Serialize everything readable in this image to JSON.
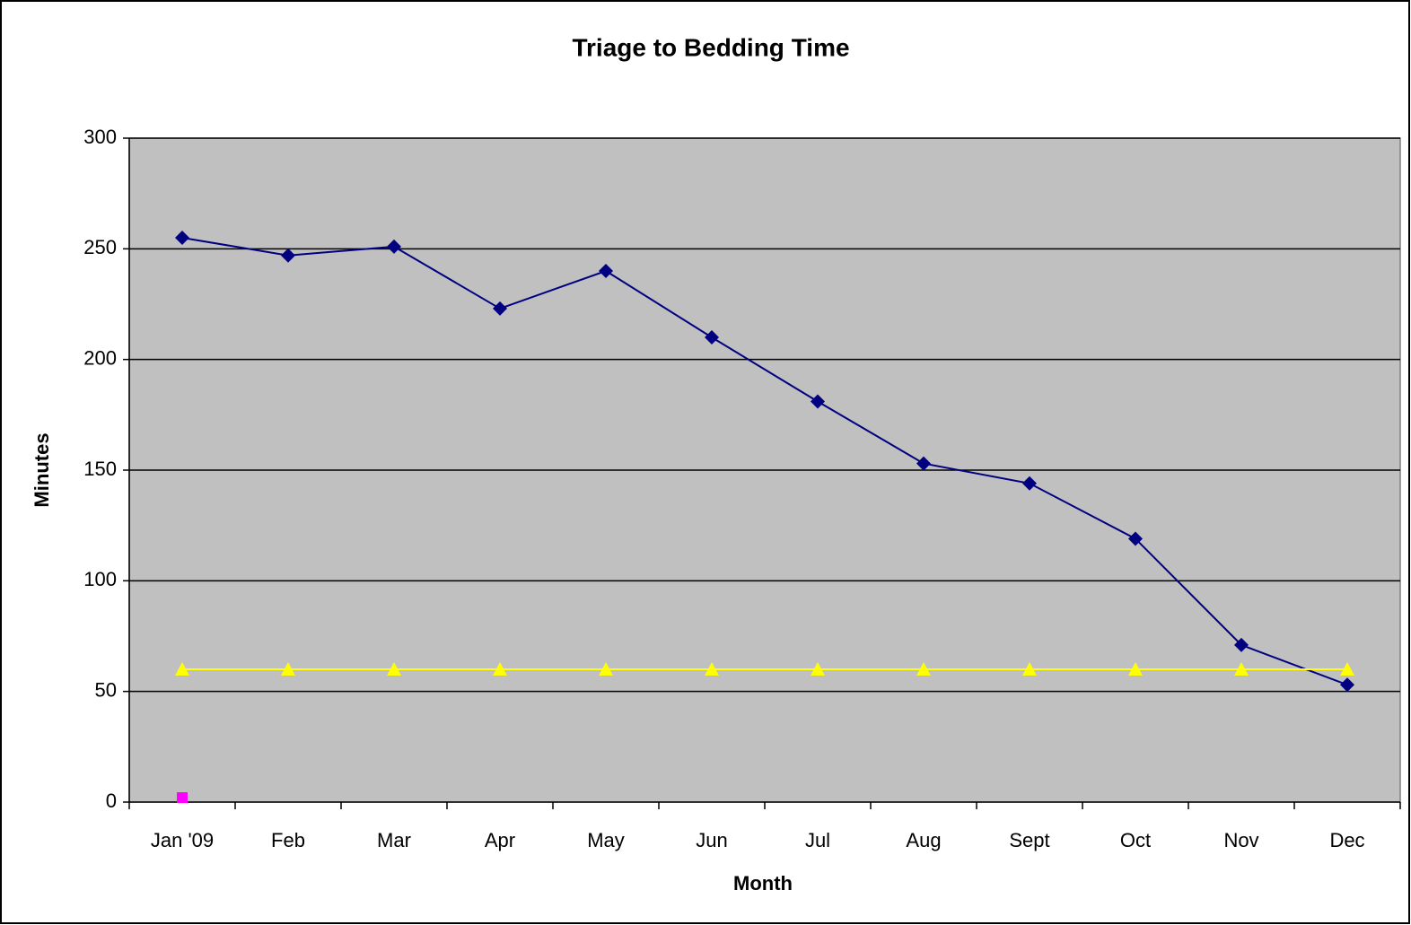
{
  "chart_data": {
    "type": "line",
    "title": "Triage to Bedding Time",
    "x_label": "Month",
    "y_label": "Minutes",
    "categories": [
      "Jan '09",
      "Feb",
      "Mar",
      "Apr",
      "May",
      "Jun",
      "Jul",
      "Aug",
      "Sept",
      "Oct",
      "Nov",
      "Dec"
    ],
    "series": [
      {
        "color": "#000080",
        "marker": "diamond",
        "values": [
          255,
          247,
          251,
          223,
          240,
          210,
          181,
          153,
          144,
          119,
          71,
          53
        ]
      },
      {
        "color": "#ffff00",
        "marker": "triangle",
        "values": [
          60,
          60,
          60,
          60,
          60,
          60,
          60,
          60,
          60,
          60,
          60,
          60
        ]
      },
      {
        "color": "#ff00ff",
        "marker": "square",
        "values": [
          2,
          null,
          null,
          null,
          null,
          null,
          null,
          null,
          null,
          null,
          null,
          null
        ]
      }
    ],
    "ylim": [
      0,
      300
    ],
    "yticks": [
      0,
      50,
      100,
      150,
      200,
      250,
      300
    ],
    "grid": true
  }
}
